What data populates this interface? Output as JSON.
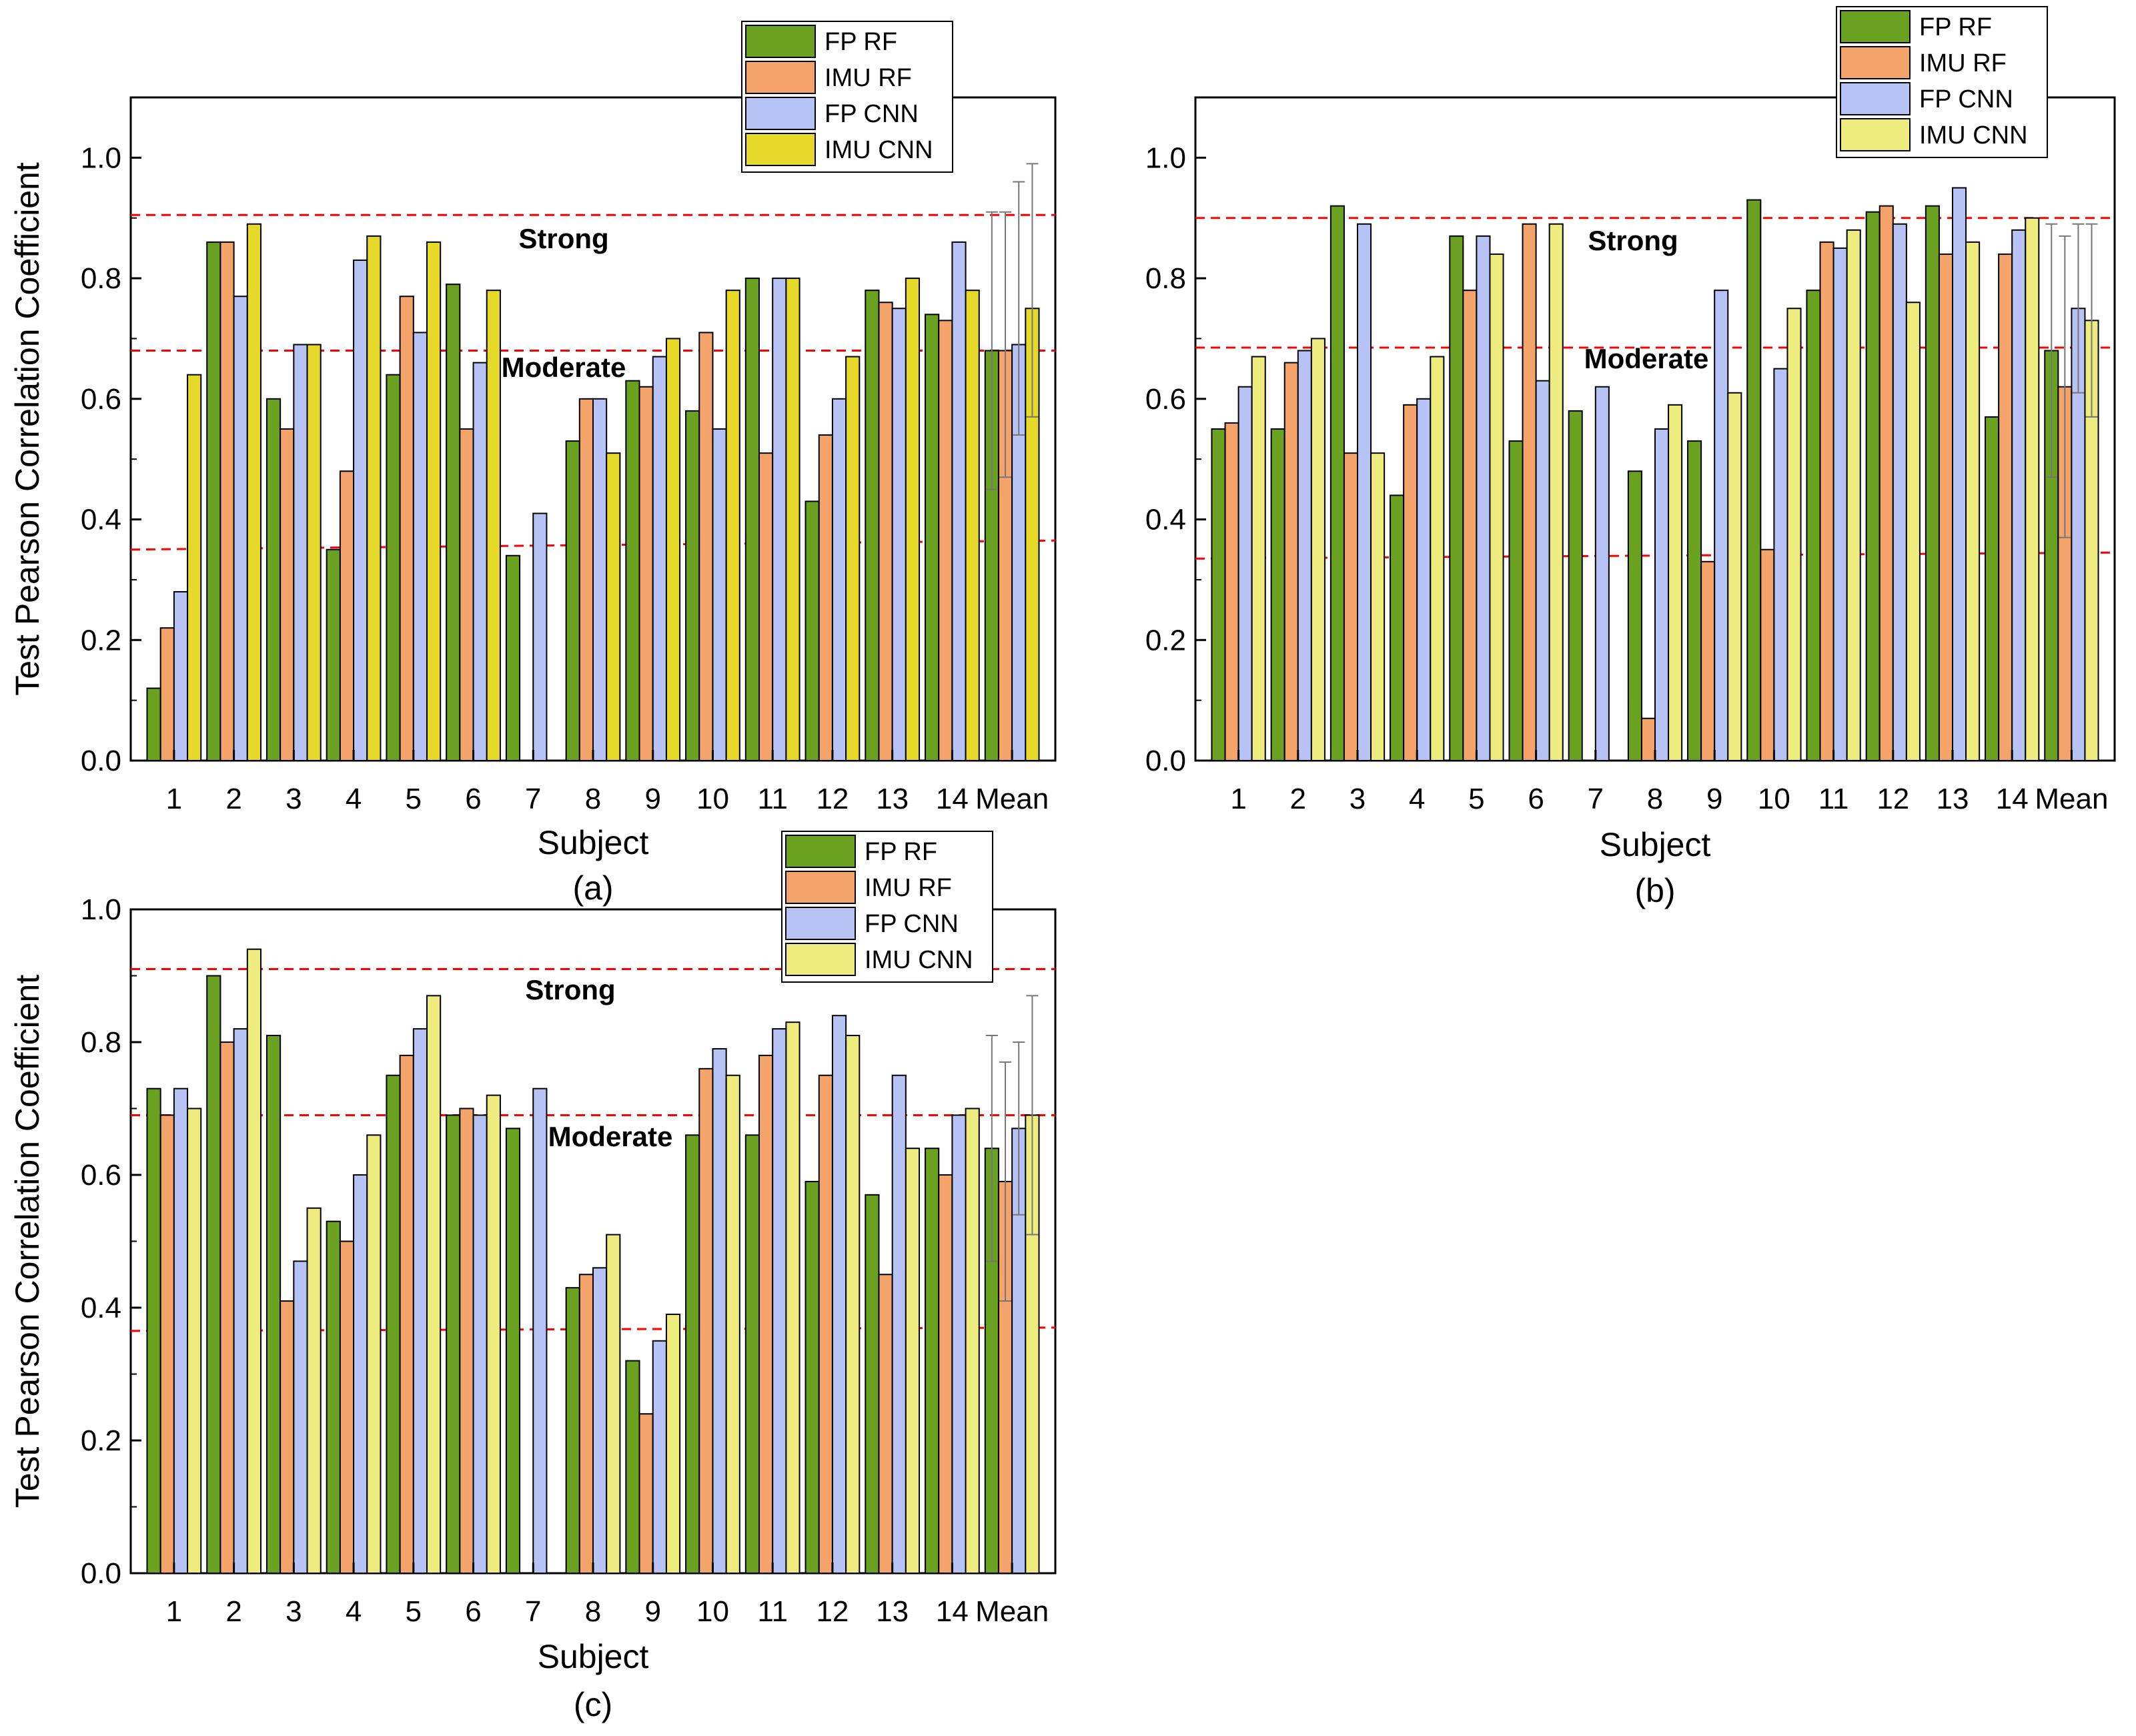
{
  "series_names": [
    "FP RF",
    "IMU RF",
    "FP CNN",
    "IMU CNN"
  ],
  "series_colors": [
    "#6aa121",
    "#f4a36b",
    "#b8c3f5",
    "#eeec7f"
  ],
  "threshold_color": "#ff0000",
  "chart_data": [
    {
      "type": "bar",
      "panel_label": "(a)",
      "title": "",
      "xlabel": "Subject",
      "ylabel": "Test Pearson Correlation Coefficient",
      "ylim": [
        0,
        1.1
      ],
      "yticks": [
        0.0,
        0.2,
        0.4,
        0.6,
        0.8,
        1.0
      ],
      "ytick_labels": [
        "0.0",
        "0.2",
        "0.4",
        "0.6",
        "0.8",
        "1.0"
      ],
      "categories": [
        "1",
        "2",
        "3",
        "4",
        "5",
        "6",
        "7",
        "8",
        "9",
        "10",
        "11",
        "12",
        "13",
        "14",
        "Mean"
      ],
      "legend_position": "top-right",
      "series": [
        {
          "name": "FP RF",
          "color": "#6aa121",
          "values": [
            0.12,
            0.86,
            0.6,
            0.35,
            0.64,
            0.79,
            0.34,
            0.53,
            0.63,
            0.58,
            0.8,
            0.43,
            0.78,
            0.74,
            0.68
          ]
        },
        {
          "name": "IMU RF",
          "color": "#f4a36b",
          "values": [
            0.22,
            0.86,
            0.55,
            0.48,
            0.77,
            0.55,
            0.0,
            0.6,
            0.62,
            0.71,
            0.51,
            0.54,
            0.76,
            0.73,
            0.68
          ]
        },
        {
          "name": "FP CNN",
          "color": "#b8c3f5",
          "values": [
            0.28,
            0.77,
            0.69,
            0.83,
            0.71,
            0.66,
            0.41,
            0.6,
            0.67,
            0.55,
            0.8,
            0.6,
            0.75,
            0.86,
            0.69
          ]
        },
        {
          "name": "IMU CNN",
          "color": "#e6d92a",
          "values": [
            0.64,
            0.89,
            0.69,
            0.87,
            0.86,
            0.78,
            0.0,
            0.51,
            0.7,
            0.78,
            0.8,
            0.67,
            0.8,
            0.78,
            0.75
          ]
        }
      ],
      "mean_error_bars": [
        [
          0.45,
          0.91
        ],
        [
          0.47,
          0.91
        ],
        [
          0.54,
          0.96
        ],
        [
          0.57,
          0.99
        ]
      ],
      "thresholds": [
        {
          "value_left": 0.905,
          "value_right": 0.905,
          "label": "Strong"
        },
        {
          "value_left": 0.68,
          "value_right": 0.68,
          "label": "Moderate"
        },
        {
          "value_left": 0.35,
          "value_right": 0.365,
          "label": ""
        }
      ]
    },
    {
      "type": "bar",
      "panel_label": "(b)",
      "title": "",
      "xlabel": "Subject",
      "ylabel": "",
      "ylim": [
        0,
        1.1
      ],
      "yticks": [
        0.0,
        0.2,
        0.4,
        0.6,
        0.8,
        1.0
      ],
      "ytick_labels": [
        "0.0",
        "0.2",
        "0.4",
        "0.6",
        "0.8",
        "1.0"
      ],
      "categories": [
        "1",
        "2",
        "3",
        "4",
        "5",
        "6",
        "7",
        "8",
        "9",
        "10",
        "11",
        "12",
        "13",
        "14",
        "Mean"
      ],
      "legend_position": "top-right",
      "series": [
        {
          "name": "FP RF",
          "color": "#6aa121",
          "values": [
            0.55,
            0.55,
            0.92,
            0.44,
            0.87,
            0.53,
            0.58,
            0.48,
            0.53,
            0.93,
            0.78,
            0.91,
            0.92,
            0.57,
            0.68
          ]
        },
        {
          "name": "IMU RF",
          "color": "#f4a36b",
          "values": [
            0.56,
            0.66,
            0.51,
            0.59,
            0.78,
            0.89,
            0.0,
            0.07,
            0.33,
            0.35,
            0.86,
            0.92,
            0.84,
            0.84,
            0.62
          ]
        },
        {
          "name": "FP CNN",
          "color": "#b8c3f5",
          "values": [
            0.62,
            0.68,
            0.89,
            0.6,
            0.87,
            0.63,
            0.62,
            0.55,
            0.78,
            0.65,
            0.85,
            0.89,
            0.95,
            0.88,
            0.75
          ]
        },
        {
          "name": "IMU CNN",
          "color": "#eeec7f",
          "values": [
            0.67,
            0.7,
            0.51,
            0.67,
            0.84,
            0.89,
            0.0,
            0.59,
            0.61,
            0.75,
            0.88,
            0.76,
            0.86,
            0.9,
            0.73
          ]
        }
      ],
      "mean_error_bars": [
        [
          0.47,
          0.89
        ],
        [
          0.37,
          0.87
        ],
        [
          0.61,
          0.89
        ],
        [
          0.57,
          0.89
        ]
      ],
      "thresholds": [
        {
          "value_left": 0.9,
          "value_right": 0.9,
          "label": "Strong"
        },
        {
          "value_left": 0.685,
          "value_right": 0.685,
          "label": "Moderate"
        },
        {
          "value_left": 0.335,
          "value_right": 0.345,
          "label": ""
        }
      ]
    },
    {
      "type": "bar",
      "panel_label": "(c)",
      "title": "",
      "xlabel": "Subject",
      "ylabel": "Test Pearson Correlation Coefficient",
      "ylim": [
        0,
        1.0
      ],
      "yticks": [
        0.0,
        0.2,
        0.4,
        0.6,
        0.8,
        1.0
      ],
      "ytick_labels": [
        "0.0",
        "0.2",
        "0.4",
        "0.6",
        "0.8",
        "1.0"
      ],
      "categories": [
        "1",
        "2",
        "3",
        "4",
        "5",
        "6",
        "7",
        "8",
        "9",
        "10",
        "11",
        "12",
        "13",
        "14",
        "Mean"
      ],
      "legend_position": "top-right",
      "series": [
        {
          "name": "FP RF",
          "color": "#6aa121",
          "values": [
            0.73,
            0.9,
            0.81,
            0.53,
            0.75,
            0.69,
            0.67,
            0.43,
            0.32,
            0.66,
            0.66,
            0.59,
            0.57,
            0.64,
            0.64
          ]
        },
        {
          "name": "IMU RF",
          "color": "#f4a36b",
          "values": [
            0.69,
            0.8,
            0.41,
            0.5,
            0.78,
            0.7,
            0.0,
            0.45,
            0.24,
            0.76,
            0.78,
            0.75,
            0.45,
            0.6,
            0.59
          ]
        },
        {
          "name": "FP CNN",
          "color": "#b8c3f5",
          "values": [
            0.73,
            0.82,
            0.47,
            0.6,
            0.82,
            0.69,
            0.73,
            0.46,
            0.35,
            0.79,
            0.82,
            0.84,
            0.75,
            0.69,
            0.67
          ]
        },
        {
          "name": "IMU CNN",
          "color": "#eeec7f",
          "values": [
            0.7,
            0.94,
            0.55,
            0.66,
            0.87,
            0.72,
            0.0,
            0.51,
            0.39,
            0.75,
            0.83,
            0.81,
            0.64,
            0.7,
            0.69
          ]
        }
      ],
      "mean_error_bars": [
        [
          0.47,
          0.81
        ],
        [
          0.41,
          0.77
        ],
        [
          0.54,
          0.8
        ],
        [
          0.51,
          0.87
        ]
      ],
      "thresholds": [
        {
          "value_left": 0.91,
          "value_right": 0.91,
          "label": "Strong"
        },
        {
          "value_left": 0.69,
          "value_right": 0.69,
          "label": "Moderate"
        },
        {
          "value_left": 0.365,
          "value_right": 0.37,
          "label": ""
        }
      ]
    }
  ]
}
